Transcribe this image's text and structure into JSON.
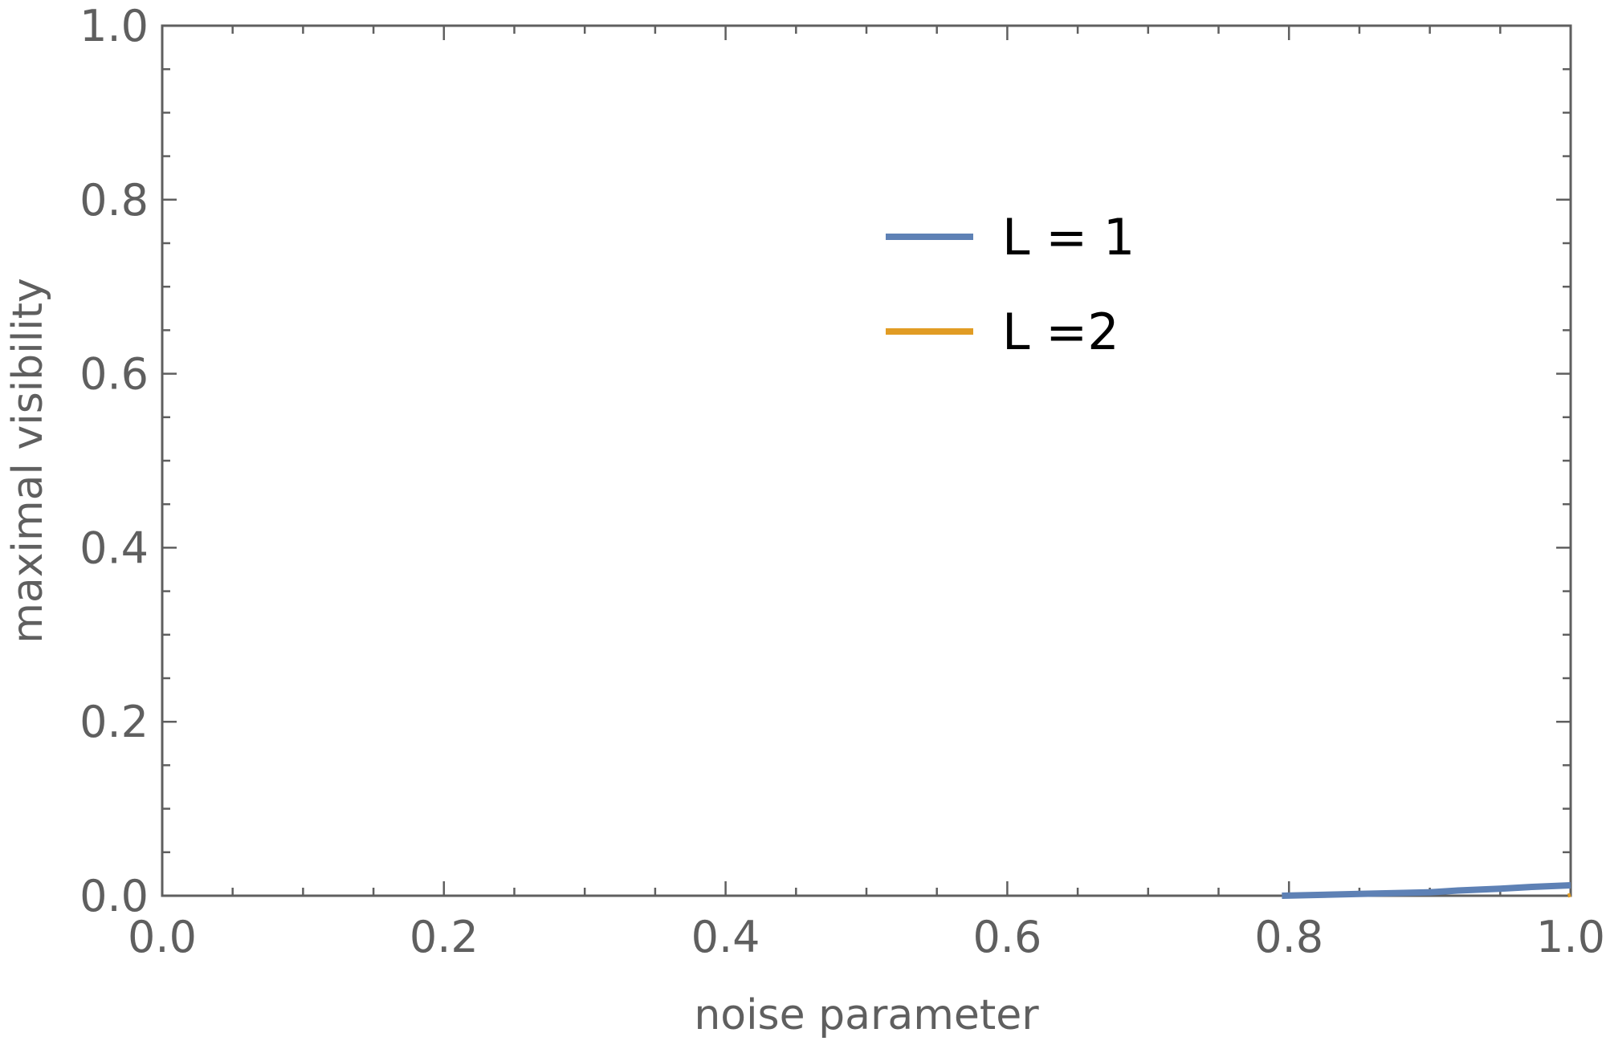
{
  "chart_data": {
    "type": "line",
    "xlabel": "noise parameter",
    "ylabel": "maximal visibility",
    "xlim": [
      0,
      1
    ],
    "ylim": [
      0,
      1
    ],
    "x_ticks": [
      "0.0",
      "0.2",
      "0.4",
      "0.6",
      "0.8",
      "1.0"
    ],
    "y_ticks": [
      "0.0",
      "0.2",
      "0.4",
      "0.6",
      "0.8",
      "1.0"
    ],
    "grid": false,
    "legend_position": "top-center-right",
    "series": [
      {
        "name": "L = 1",
        "color": "#5e81b5",
        "x": [
          0.795,
          0.85,
          0.9,
          0.92,
          0.95,
          0.97,
          1.0
        ],
        "y": [
          0.0,
          0.002,
          0.004,
          0.006,
          0.008,
          0.01,
          0.012
        ]
      },
      {
        "name": "L =2",
        "color": "#e19c24",
        "x": [
          0.998,
          1.0
        ],
        "y": [
          0.0,
          0.001
        ]
      }
    ]
  }
}
